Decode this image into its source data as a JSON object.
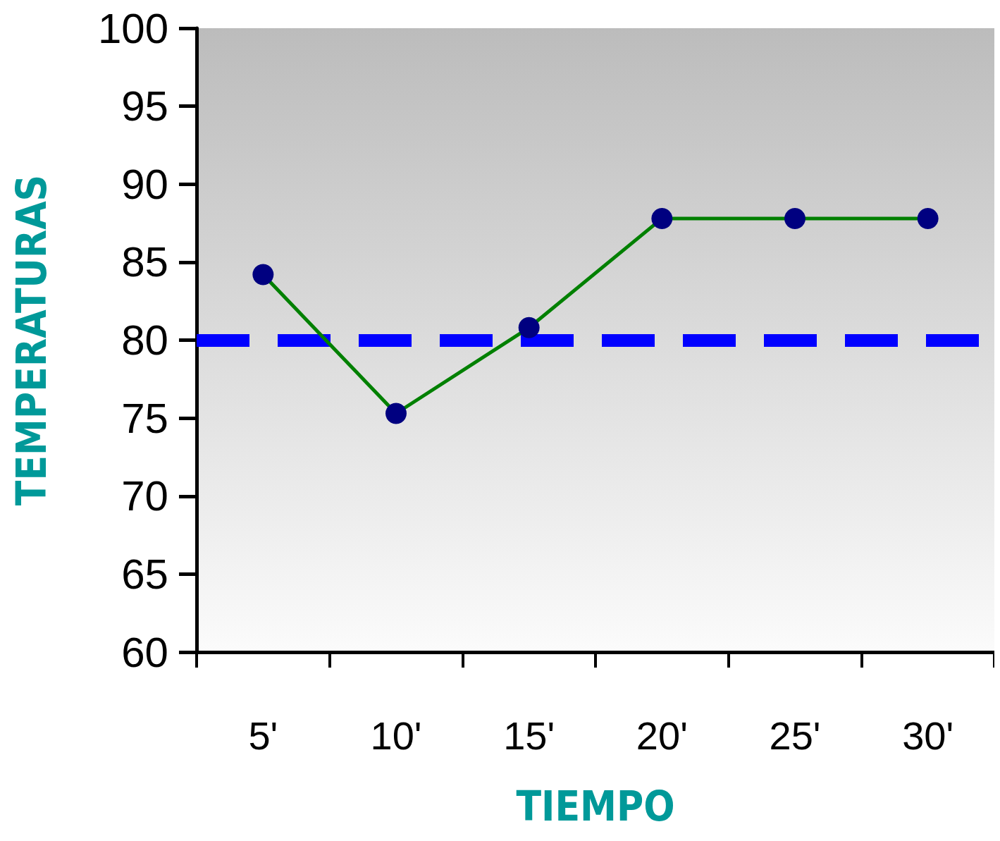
{
  "chart_data": {
    "type": "line",
    "xlabel": "TIEMPO",
    "ylabel": "TEMPERATURAS",
    "categories": [
      "5'",
      "10'",
      "15'",
      "20'",
      "25'",
      "30'"
    ],
    "series": [
      {
        "color": "#008000",
        "colors": [
          "#000080",
          "#000080",
          "#000080",
          "#000080",
          "#000080",
          "#000080"
        ],
        "values": [
          84.2,
          75.3,
          80.8,
          87.8,
          87.8,
          87.8
        ]
      }
    ],
    "ylim": [
      60,
      100
    ],
    "yticks": [
      60,
      65,
      70,
      75,
      80,
      85,
      90,
      95,
      100
    ],
    "ref_lines": [
      {
        "axis": "y",
        "value": 80,
        "color": "#0000ff",
        "line_style": "dashed"
      }
    ],
    "marker": "circle",
    "line_style": "solid",
    "grid": false
  }
}
